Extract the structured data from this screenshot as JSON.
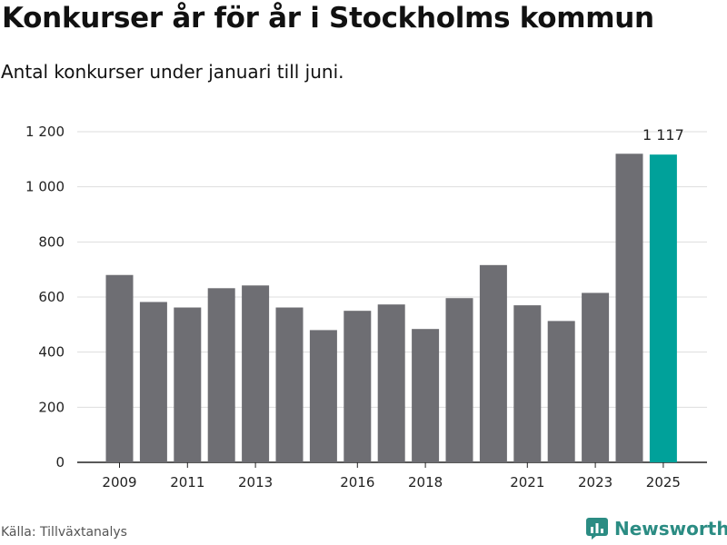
{
  "header": {
    "title": "Konkurser år för år i Stockholms kommun",
    "subtitle": "Antal konkurser under januari till juni."
  },
  "footer": {
    "source": "Källa: Tillväxtanalys",
    "brand": "Newsworthy"
  },
  "colors": {
    "bar": "#6e6e73",
    "highlight": "#00a19a",
    "grid": "#dddddd",
    "axis": "#222222",
    "brand": "#2b8c83"
  },
  "chart_data": {
    "type": "bar",
    "title": "Konkurser år för år i Stockholms kommun",
    "subtitle": "Antal konkurser under januari till juni.",
    "categories": [
      "2009",
      "2010",
      "2011",
      "2012",
      "2013",
      "2014",
      "2015",
      "2016",
      "2017",
      "2018",
      "2019",
      "2020",
      "2021",
      "2022",
      "2023",
      "2024",
      "2025"
    ],
    "values": [
      680,
      582,
      562,
      632,
      642,
      562,
      480,
      550,
      573,
      484,
      596,
      716,
      570,
      513,
      615,
      1120,
      1117
    ],
    "highlight_index": 16,
    "x_tick_labels": [
      "2009",
      "2011",
      "2013",
      "2016",
      "2018",
      "2021",
      "2023",
      "2025"
    ],
    "y_ticks": [
      0,
      200,
      400,
      600,
      800,
      1000,
      1200
    ],
    "y_tick_labels": [
      "0",
      "200",
      "400",
      "600",
      "800",
      "1 000",
      "1 200"
    ],
    "ylim": [
      0,
      1200
    ],
    "data_labels": [
      {
        "index": 16,
        "text": "1 117"
      }
    ],
    "grid": true,
    "legend": "none"
  }
}
